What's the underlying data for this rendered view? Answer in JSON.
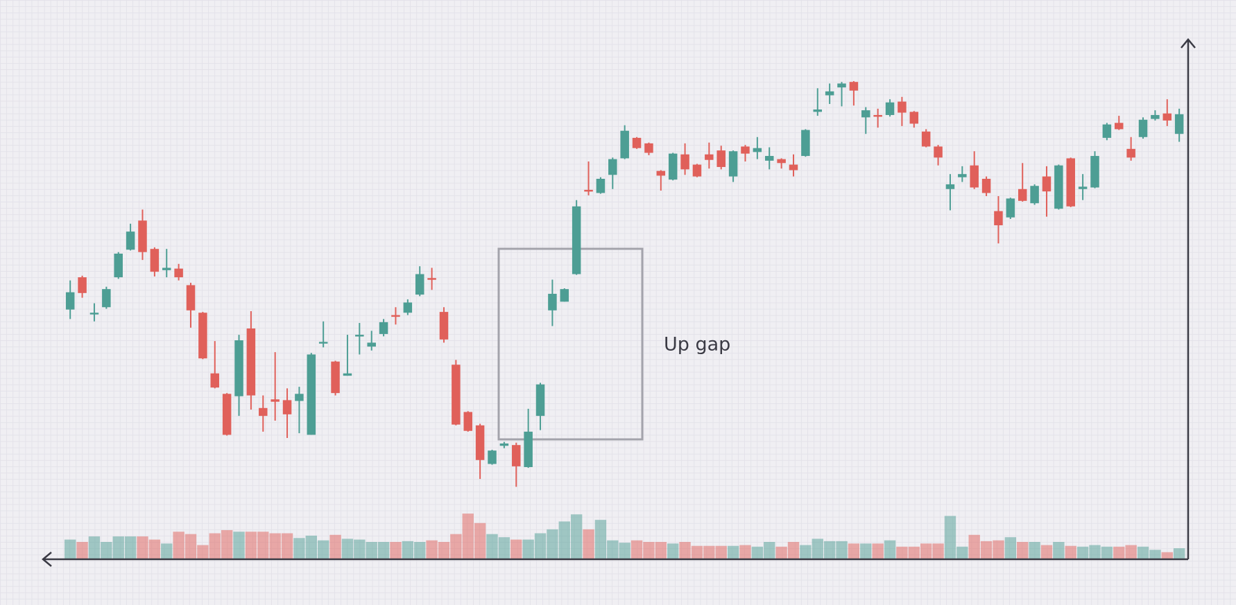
{
  "chart_data": {
    "type": "candlestick",
    "annotation": "Up gap",
    "up_color": "#4d9e94",
    "down_color": "#e0605a",
    "ylim": [
      0,
      710
    ],
    "open": [
      317,
      358,
      311,
      320,
      358,
      393,
      430,
      394,
      367,
      369,
      348,
      313,
      236,
      210,
      207,
      293,
      192,
      203,
      202,
      201,
      158,
      274,
      251,
      233,
      283,
      270,
      286,
      310,
      313,
      336,
      357,
      314,
      247,
      187,
      170,
      121,
      144,
      145,
      117,
      182,
      316,
      327,
      362,
      469,
      465,
      488,
      509,
      535,
      528,
      493,
      482,
      514,
      501,
      514,
      519,
      486,
      524,
      517,
      506,
      508,
      501,
      512,
      568,
      589,
      599,
      606,
      561,
      564,
      564,
      581,
      568,
      543,
      524,
      470,
      485,
      500,
      483,
      442,
      434,
      470,
      452,
      486,
      445,
      509,
      470,
      472,
      535,
      554,
      521,
      536,
      559,
      566,
      540
    ],
    "high": [
      354,
      360,
      325,
      346,
      390,
      426,
      444,
      396,
      394,
      375,
      351,
      314,
      277,
      211,
      285,
      315,
      208,
      263,
      217,
      219,
      262,
      302,
      252,
      285,
      300,
      290,
      305,
      320,
      330,
      372,
      370,
      320,
      253,
      188,
      172,
      139,
      149,
      148,
      191,
      224,
      355,
      344,
      456,
      505,
      485,
      510,
      551,
      536,
      529,
      494,
      516,
      528,
      502,
      529,
      525,
      519,
      526,
      536,
      523,
      509,
      514,
      546,
      598,
      604,
      606,
      607,
      574,
      572,
      584,
      587,
      569,
      546,
      526,
      489,
      499,
      518,
      486,
      461,
      459,
      503,
      476,
      499,
      501,
      510,
      489,
      518,
      554,
      563,
      536,
      561,
      570,
      584,
      572
    ],
    "low": [
      305,
      332,
      302,
      318,
      356,
      392,
      380,
      359,
      358,
      354,
      294,
      254,
      217,
      157,
      182,
      190,
      162,
      176,
      154,
      160,
      158,
      269,
      208,
      233,
      260,
      265,
      283,
      298,
      310,
      334,
      342,
      275,
      170,
      162,
      102,
      120,
      141,
      92,
      116,
      164,
      296,
      327,
      361,
      462,
      464,
      470,
      508,
      521,
      513,
      468,
      481,
      488,
      485,
      496,
      495,
      479,
      505,
      508,
      495,
      496,
      486,
      511,
      563,
      578,
      575,
      576,
      540,
      548,
      562,
      550,
      548,
      523,
      500,
      443,
      479,
      470,
      461,
      401,
      432,
      454,
      450,
      435,
      444,
      447,
      456,
      471,
      532,
      545,
      506,
      534,
      557,
      550,
      530
    ],
    "close": [
      339,
      338,
      313,
      343,
      388,
      416,
      390,
      365,
      370,
      358,
      316,
      255,
      218,
      158,
      278,
      208,
      182,
      200,
      184,
      210,
      260,
      276,
      211,
      236,
      285,
      275,
      301,
      308,
      326,
      362,
      355,
      279,
      171,
      163,
      126,
      138,
      147,
      118,
      162,
      222,
      337,
      343,
      448,
      467,
      483,
      508,
      544,
      522,
      516,
      487,
      515,
      495,
      486,
      507,
      498,
      518,
      515,
      522,
      512,
      503,
      494,
      545,
      571,
      594,
      604,
      595,
      570,
      562,
      580,
      567,
      553,
      524,
      510,
      476,
      489,
      472,
      465,
      424,
      458,
      455,
      474,
      467,
      500,
      448,
      473,
      512,
      552,
      546,
      510,
      558,
      564,
      557,
      565
    ],
    "volume": [
      25,
      22,
      29,
      22,
      29,
      29,
      29,
      25,
      20,
      35,
      32,
      18,
      33,
      37,
      35,
      35,
      35,
      33,
      33,
      27,
      30,
      24,
      31,
      26,
      25,
      22,
      22,
      22,
      23,
      22,
      24,
      22,
      32,
      58,
      46,
      32,
      28,
      25,
      25,
      33,
      38,
      48,
      57,
      38,
      50,
      24,
      21,
      24,
      22,
      22,
      20,
      22,
      17,
      17,
      17,
      17,
      18,
      16,
      22,
      16,
      22,
      18,
      26,
      23,
      23,
      20,
      20,
      20,
      24,
      16,
      16,
      20,
      20,
      55,
      16,
      31,
      23,
      24,
      28,
      22,
      22,
      18,
      22,
      17,
      16,
      18,
      16,
      16,
      18,
      16,
      12,
      9,
      14
    ]
  }
}
